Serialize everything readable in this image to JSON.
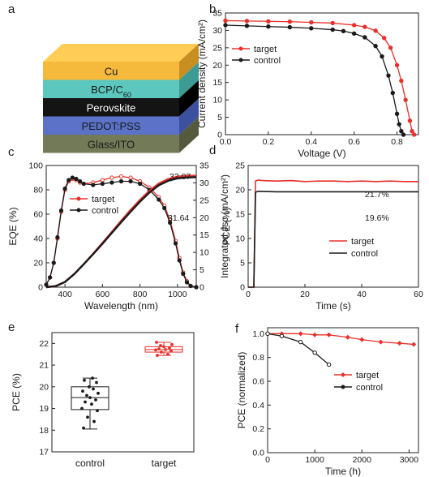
{
  "panel_labels": [
    "a",
    "b",
    "c",
    "d",
    "e",
    "f"
  ],
  "colors": {
    "target": "#e8302a",
    "control": "#1a1a1a"
  },
  "device_stack": {
    "layers": [
      {
        "label": "Cu",
        "front": "#f5b93c",
        "side": "#c98e22",
        "top": "#ffcd55"
      },
      {
        "label": "BCP/C60",
        "front": "#5cc7be",
        "side": "#3c9c94"
      },
      {
        "label": "Perovskite",
        "front": "#141414",
        "side": "#000000"
      },
      {
        "label": "PEDOT:PSS",
        "front": "#5b72c8",
        "side": "#3c50a0"
      },
      {
        "label": "Glass/ITO",
        "front": "#737a58",
        "side": "#55593e"
      }
    ]
  },
  "chart_data": [
    {
      "panel": "b",
      "type": "line",
      "xlabel": "Voltage (V)",
      "ylabel": "Current density (mA/cm²)",
      "xlim": [
        0,
        0.9
      ],
      "ylim": [
        0,
        35
      ],
      "xticks": [
        0.0,
        0.2,
        0.4,
        0.6,
        0.8
      ],
      "yticks": [
        0,
        5,
        10,
        15,
        20,
        25,
        30,
        35
      ],
      "legend": "center-left",
      "series": [
        {
          "name": "target",
          "color": "#e8302a",
          "marker": "circle",
          "x": [
            0,
            0.1,
            0.2,
            0.3,
            0.4,
            0.5,
            0.6,
            0.65,
            0.7,
            0.74,
            0.77,
            0.8,
            0.82,
            0.84,
            0.86,
            0.87,
            0.88
          ],
          "y": [
            32.8,
            32.7,
            32.6,
            32.5,
            32.3,
            32.1,
            31.5,
            31.0,
            29.9,
            27.8,
            25.0,
            20.0,
            15.5,
            10.0,
            4.0,
            1.0,
            0
          ]
        },
        {
          "name": "control",
          "color": "#1a1a1a",
          "marker": "circle",
          "x": [
            0,
            0.1,
            0.2,
            0.3,
            0.4,
            0.5,
            0.55,
            0.6,
            0.65,
            0.7,
            0.73,
            0.76,
            0.78,
            0.8,
            0.81,
            0.82,
            0.83
          ],
          "y": [
            31.5,
            31.3,
            31.1,
            30.9,
            30.6,
            30.2,
            29.8,
            29.1,
            28.0,
            25.5,
            22.5,
            17.0,
            12.0,
            6.0,
            3.0,
            1.0,
            0
          ]
        }
      ]
    },
    {
      "panel": "c",
      "type": "line",
      "xlabel": "Wavelength (nm)",
      "ylabel": "EQE (%)",
      "y2label": "Integrated Jsc (mA/cm²)",
      "xlim": [
        300,
        1100
      ],
      "ylim": [
        0,
        100
      ],
      "y2lim": [
        0,
        35
      ],
      "xticks": [
        400,
        600,
        800,
        1000
      ],
      "yticks": [
        0,
        20,
        40,
        60,
        80,
        100
      ],
      "y2ticks": [
        0,
        5,
        10,
        15,
        20,
        25,
        30,
        35
      ],
      "legend": "center-left",
      "annotations": [
        "32.07",
        "31.64"
      ],
      "series": [
        {
          "name": "target",
          "color": "#e8302a",
          "marker": "circle",
          "x": [
            300,
            320,
            340,
            360,
            380,
            400,
            420,
            440,
            460,
            480,
            500,
            550,
            600,
            650,
            700,
            750,
            800,
            850,
            900,
            930,
            960,
            990,
            1010,
            1030,
            1050,
            1070,
            1100
          ],
          "y": [
            2,
            8,
            20,
            40,
            62,
            80,
            87,
            89,
            88,
            86,
            85,
            86,
            88,
            90,
            91,
            90,
            87,
            82,
            74,
            67,
            55,
            38,
            24,
            12,
            5,
            1,
            0
          ]
        },
        {
          "name": "control",
          "color": "#1a1a1a",
          "marker": "circle",
          "x": [
            300,
            320,
            340,
            360,
            380,
            400,
            420,
            440,
            460,
            480,
            500,
            550,
            600,
            650,
            700,
            750,
            800,
            850,
            900,
            930,
            960,
            990,
            1010,
            1030,
            1050,
            1070,
            1100
          ],
          "y": [
            2,
            8,
            20,
            41,
            63,
            81,
            88,
            90,
            89,
            87,
            85,
            84,
            85,
            86,
            87,
            87,
            85,
            80,
            72,
            65,
            53,
            36,
            22,
            11,
            4,
            1,
            0
          ]
        },
        {
          "name": "target Jsc",
          "axis": "y2",
          "color": "#e8302a",
          "x": [
            300,
            350,
            400,
            450,
            500,
            550,
            600,
            650,
            700,
            750,
            800,
            850,
            900,
            950,
            1000,
            1050,
            1100
          ],
          "y": [
            0,
            0.3,
            1.5,
            3.8,
            6.6,
            9.6,
            12.7,
            15.9,
            19.1,
            22.2,
            25.1,
            27.7,
            29.8,
            31.1,
            31.8,
            32.0,
            32.07
          ]
        },
        {
          "name": "control Jsc",
          "axis": "y2",
          "color": "#1a1a1a",
          "x": [
            300,
            350,
            400,
            450,
            500,
            550,
            600,
            650,
            700,
            750,
            800,
            850,
            900,
            950,
            1000,
            1050,
            1100
          ],
          "y": [
            0,
            0.3,
            1.5,
            3.8,
            6.6,
            9.5,
            12.5,
            15.6,
            18.7,
            21.7,
            24.6,
            27.2,
            29.3,
            30.6,
            31.3,
            31.55,
            31.64
          ]
        }
      ]
    },
    {
      "panel": "d",
      "type": "line",
      "xlabel": "Time (s)",
      "ylabel": "PCE (%)",
      "xlim": [
        0,
        60
      ],
      "ylim": [
        0,
        25
      ],
      "xticks": [
        0,
        20,
        40,
        60
      ],
      "yticks": [
        0,
        5,
        10,
        15,
        20,
        25
      ],
      "legend": "center-right",
      "annotations": [
        "21.7%",
        "19.6%"
      ],
      "series": [
        {
          "name": "target",
          "color": "#e8302a",
          "x": [
            0,
            2,
            2.6,
            3.5,
            5,
            10,
            15,
            20,
            25,
            30,
            35,
            40,
            45,
            50,
            55,
            60
          ],
          "y": [
            0,
            0,
            21.8,
            22.0,
            21.9,
            21.8,
            21.9,
            21.7,
            21.8,
            21.8,
            21.7,
            21.8,
            21.7,
            21.8,
            21.7,
            21.7
          ]
        },
        {
          "name": "control",
          "color": "#1a1a1a",
          "x": [
            0,
            2,
            2.6,
            3.5,
            10,
            20,
            30,
            40,
            50,
            60
          ],
          "y": [
            0,
            0,
            19.5,
            19.7,
            19.6,
            19.6,
            19.6,
            19.6,
            19.6,
            19.6
          ]
        }
      ]
    },
    {
      "panel": "e",
      "type": "box",
      "ylabel": "PCE (%)",
      "ylim": [
        17,
        22.5
      ],
      "yticks": [
        17,
        18,
        19,
        20,
        21,
        22
      ],
      "categories": [
        "control",
        "target"
      ],
      "boxes": [
        {
          "category": "control",
          "color": "#1a1a1a",
          "min": 18.05,
          "q1": 18.95,
          "median": 19.5,
          "q3": 20.0,
          "max": 20.4,
          "points": [
            18.1,
            18.4,
            18.6,
            18.9,
            19.0,
            19.2,
            19.3,
            19.4,
            19.5,
            19.6,
            19.7,
            19.8,
            19.9,
            20.0,
            20.2,
            20.3,
            20.4
          ]
        },
        {
          "category": "target",
          "color": "#e8302a",
          "min": 21.45,
          "q1": 21.6,
          "median": 21.72,
          "q3": 21.85,
          "max": 22.05,
          "points": [
            21.45,
            21.5,
            21.6,
            21.65,
            21.7,
            21.72,
            21.75,
            21.8,
            21.85,
            21.9,
            21.95,
            22.05
          ]
        }
      ]
    },
    {
      "panel": "f",
      "type": "line",
      "xlabel": "Time (h)",
      "ylabel": "PCE (normalized)",
      "xlim": [
        0,
        3200
      ],
      "ylim": [
        0,
        1.05
      ],
      "xticks": [
        0,
        1000,
        2000,
        3000
      ],
      "yticks": [
        0.0,
        0.2,
        0.4,
        0.6,
        0.8,
        1.0
      ],
      "legend": "center-right",
      "series": [
        {
          "name": "target",
          "color": "#e8302a",
          "marker": "diamond",
          "x": [
            0,
            300,
            700,
            1000,
            1300,
            1700,
            2000,
            2400,
            2800,
            3100
          ],
          "y": [
            1.0,
            1.0,
            1.0,
            0.99,
            0.99,
            0.97,
            0.95,
            0.93,
            0.92,
            0.91
          ]
        },
        {
          "name": "control",
          "color": "#1a1a1a",
          "marker": "circle",
          "x": [
            0,
            300,
            700,
            1000,
            1300
          ],
          "y": [
            1.0,
            0.98,
            0.93,
            0.84,
            0.74
          ]
        }
      ]
    }
  ]
}
